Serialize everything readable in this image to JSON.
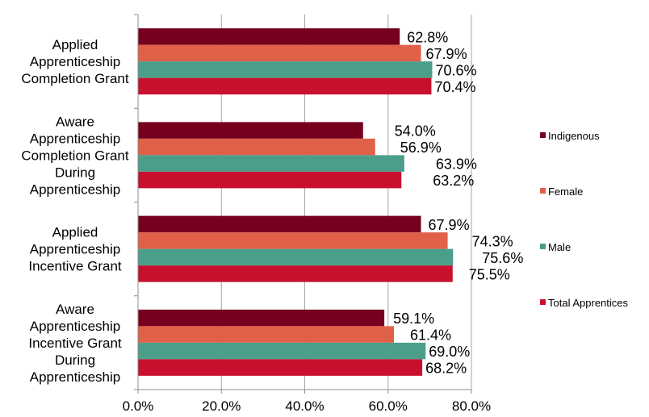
{
  "chart_data": {
    "type": "bar",
    "orientation": "horizontal",
    "categories": [
      [
        "Applied",
        "Apprenticeship",
        "Completion Grant"
      ],
      [
        "Aware",
        "Apprenticeship",
        "Completion Grant",
        "During",
        "Apprenticeship"
      ],
      [
        "Applied",
        "Apprenticeship",
        "Incentive Grant"
      ],
      [
        "Aware",
        "Apprenticeship",
        "Incentive Grant",
        "During",
        "Apprenticeship"
      ]
    ],
    "series": [
      {
        "name": "Indigenous",
        "color": "#76001e",
        "values": [
          62.8,
          54.0,
          67.9,
          59.1
        ],
        "labels": [
          "62.8%",
          "54.0%",
          "67.9%",
          "59.1%"
        ]
      },
      {
        "name": "Female",
        "color": "#e06048",
        "values": [
          67.9,
          56.9,
          74.3,
          61.4
        ],
        "labels": [
          "67.9%",
          "56.9%",
          "74.3%",
          "61.4%"
        ]
      },
      {
        "name": "Male",
        "color": "#4b9f8a",
        "values": [
          70.6,
          63.9,
          75.6,
          69.0
        ],
        "labels": [
          "70.6%",
          "63.9%",
          "75.6%",
          "69.0%"
        ]
      },
      {
        "name": "Total Apprentices",
        "color": "#c8102e",
        "values": [
          70.4,
          63.2,
          75.5,
          68.2
        ],
        "labels": [
          "70.4%",
          "63.2%",
          "75.5%",
          "68.2%"
        ]
      }
    ],
    "xlim": [
      0,
      80
    ],
    "xticks": [
      0,
      20,
      40,
      60,
      80
    ],
    "xtick_labels": [
      "0.0%",
      "20.0%",
      "40.0%",
      "60.0%",
      "80.0%"
    ],
    "grid": "vertical",
    "legend_position": "right"
  }
}
